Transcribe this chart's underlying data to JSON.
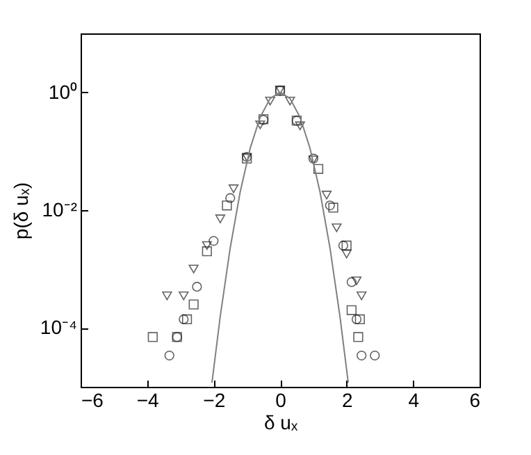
{
  "chart_data": {
    "type": "scatter",
    "xlabel": "δ uₓ",
    "ylabel": "p(δ uₓ)",
    "log": "y",
    "xlim": [
      -6,
      6
    ],
    "xticks": [
      -6,
      -4,
      -2,
      0,
      2,
      4,
      6
    ],
    "ylim": [
      1e-05,
      10
    ],
    "yticks": [
      {
        "value": 1,
        "label": "10⁰"
      },
      {
        "value": 0.01,
        "label": "10⁻²"
      },
      {
        "value": 0.0001,
        "label": "10⁻⁴"
      }
    ],
    "grid": false,
    "series": [
      {
        "marker": "triangle",
        "color": "#222222",
        "x": [
          -3.4,
          -2.9,
          -2.6,
          -2.2,
          -1.8,
          -1.4,
          -1.0,
          -0.6,
          -0.3,
          0,
          0.3,
          0.6,
          1.0,
          1.4,
          1.7,
          2.0,
          2.3,
          2.45
        ],
        "values": [
          0.00035,
          0.00035,
          0.001,
          0.0025,
          0.0071,
          0.023,
          0.079,
          0.28,
          0.71,
          1.1,
          0.71,
          0.27,
          0.071,
          0.018,
          0.005,
          0.0018,
          0.00063,
          0.00035
        ]
      },
      {
        "marker": "square",
        "color": "#222222",
        "x": [
          -3.83,
          -3.1,
          -2.8,
          -2.6,
          -2.2,
          -1.6,
          -1.0,
          -0.5,
          0,
          0.5,
          1.15,
          1.6,
          2.0,
          2.15,
          2.4,
          2.35
        ],
        "values": [
          7e-05,
          7e-05,
          0.00014,
          0.00025,
          0.002,
          0.012,
          0.075,
          0.35,
          1.05,
          0.33,
          0.05,
          0.011,
          0.0025,
          0.0002,
          0.00014,
          7e-05
        ]
      },
      {
        "marker": "circle",
        "color": "#222222",
        "x": [
          -3.33,
          -3.1,
          -2.9,
          -2.5,
          -2.0,
          -1.5,
          -1.0,
          -0.5,
          0,
          0.5,
          1.0,
          1.5,
          1.9,
          2.15,
          2.3,
          2.45,
          2.85
        ],
        "values": [
          3.4e-05,
          7e-05,
          0.00014,
          0.0005,
          0.003,
          0.016,
          0.08,
          0.34,
          1.08,
          0.33,
          0.075,
          0.012,
          0.0025,
          0.0006,
          0.00014,
          3.4e-05,
          3.4e-05
        ]
      },
      {
        "type": "line",
        "marker": "none",
        "line_style": "solid",
        "color": "#808080",
        "x": [
          -2.05,
          -1.8,
          -1.5,
          -1.2,
          -0.9,
          -0.6,
          -0.3,
          0,
          0.3,
          0.6,
          0.9,
          1.2,
          1.5,
          1.8,
          2.05
        ],
        "values": [
          1.17e-05,
          0.000157,
          0.00229,
          0.0204,
          0.112,
          0.378,
          0.784,
          1,
          0.784,
          0.378,
          0.112,
          0.0204,
          0.00229,
          0.000157,
          1.17e-05
        ]
      }
    ]
  }
}
